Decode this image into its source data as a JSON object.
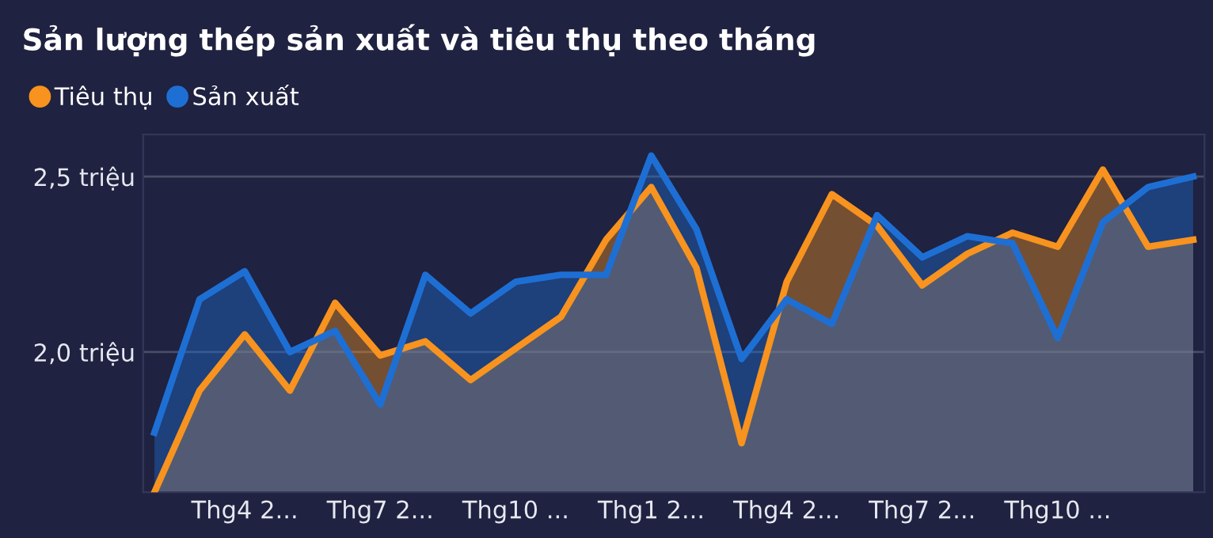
{
  "chart_data": {
    "type": "area",
    "title": "Sản lượng thép sản xuất và tiêu thụ theo tháng",
    "categories": [
      null,
      null,
      "Thg4 2...",
      null,
      null,
      "Thg7 2...",
      null,
      null,
      "Thg10 ...",
      null,
      null,
      "Thg1 2...",
      null,
      null,
      "Thg4 2...",
      null,
      null,
      "Thg7 2...",
      null,
      null,
      "Thg10 ...",
      null,
      null,
      null
    ],
    "series": [
      {
        "name": "Tiêu thụ",
        "color": "#f7931e",
        "values": [
          1.6,
          1.89,
          2.05,
          1.89,
          2.14,
          1.99,
          2.03,
          1.92,
          2.01,
          2.1,
          2.32,
          2.47,
          2.24,
          1.74,
          2.2,
          2.45,
          2.36,
          2.19,
          2.28,
          2.34,
          2.3,
          2.52,
          2.3,
          2.32
        ]
      },
      {
        "name": "Sản xuất",
        "color": "#1e6fd4",
        "values": [
          1.77,
          2.15,
          2.23,
          2.0,
          2.06,
          1.85,
          2.22,
          2.11,
          2.2,
          2.22,
          2.22,
          2.56,
          2.35,
          1.98,
          2.15,
          2.08,
          2.39,
          2.27,
          2.33,
          2.31,
          2.04,
          2.37,
          2.47,
          2.5
        ]
      }
    ],
    "ylim": [
      1.6,
      2.62
    ],
    "yticks": [
      {
        "value": 2.0,
        "label": "2,0 triệu"
      },
      {
        "value": 2.5,
        "label": "2,5 triệu"
      }
    ],
    "grid": "y",
    "legend": "top left",
    "marker": "none",
    "line_style": "solid"
  }
}
